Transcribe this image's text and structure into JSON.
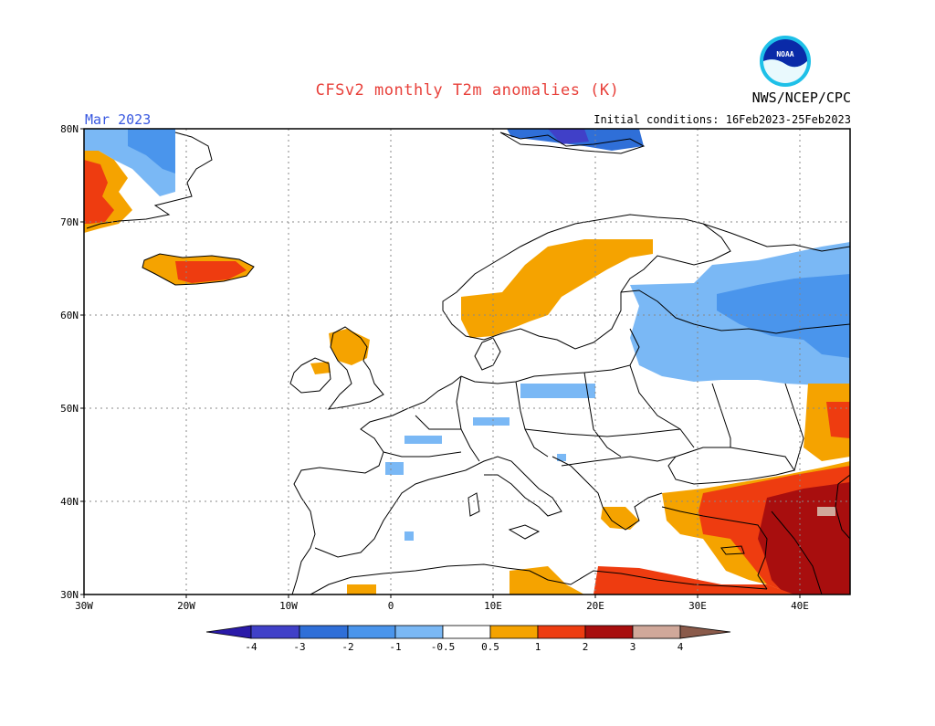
{
  "header": {
    "title": "CFSv2 monthly T2m anomalies (K)",
    "month": "Mar 2023",
    "agency": "NWS/NCEP/CPC",
    "initial_conditions": "Initial conditions: 16Feb2023-25Feb2023",
    "logo_text": "NOAA"
  },
  "map": {
    "region": "Europe",
    "lon_range": [
      -30,
      45
    ],
    "lat_range": [
      30,
      80
    ],
    "lat_ticks": [
      "80N",
      "70N",
      "60N",
      "50N",
      "40N",
      "30N"
    ],
    "lon_ticks": [
      "30W",
      "20W",
      "10W",
      "0",
      "10E",
      "20E",
      "30E",
      "40E"
    ]
  },
  "colorbar": {
    "labels": [
      "-4",
      "-3",
      "-2",
      "-1",
      "-0.5",
      "0.5",
      "1",
      "2",
      "3",
      "4"
    ],
    "colors": [
      "#2a1aa8",
      "#4040c8",
      "#2f6fd8",
      "#4a95ec",
      "#7ab8f5",
      "#ffffff",
      "#f5a300",
      "#ee3c10",
      "#a80e0e",
      "#8b0000",
      "#d0a89a",
      "#8a5a4a"
    ]
  },
  "colors": {
    "title": "#e8403a",
    "month": "#3858e0",
    "frame": "#000000",
    "grid": "#999999"
  }
}
